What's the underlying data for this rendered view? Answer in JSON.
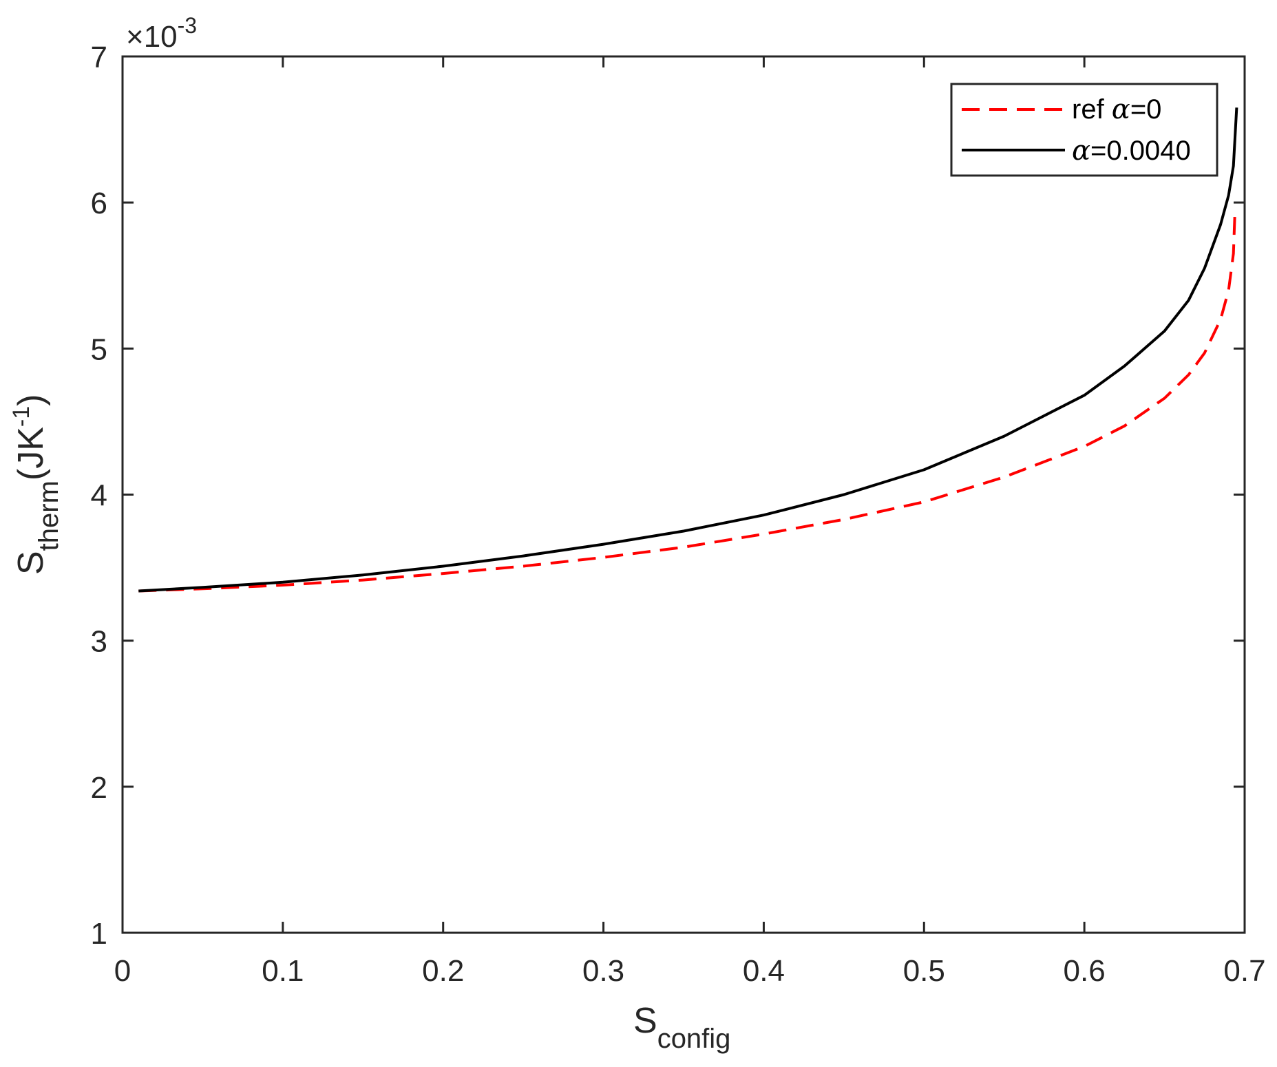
{
  "chart_data": {
    "type": "line",
    "title": "",
    "xlabel": "S_config",
    "xlabel_main": "S",
    "xlabel_sub": "config",
    "ylabel": "S_therm (JK^-1)",
    "ylabel_main": "S",
    "ylabel_sub": "therm",
    "ylabel_unit_open": "(JK",
    "ylabel_unit_sup": "-1",
    "ylabel_unit_close": ")",
    "y_multiplier": "×10",
    "y_multiplier_exp": "-3",
    "xlim": [
      0,
      0.7
    ],
    "ylim": [
      1,
      7
    ],
    "y_scale_factor": 0.001,
    "xticks": [
      0,
      0.1,
      0.2,
      0.3,
      0.4,
      0.5,
      0.6,
      0.7
    ],
    "xtick_labels": [
      "0",
      "0.1",
      "0.2",
      "0.3",
      "0.4",
      "0.5",
      "0.6",
      "0.7"
    ],
    "yticks": [
      1,
      2,
      3,
      4,
      5,
      6,
      7
    ],
    "ytick_labels": [
      "1",
      "2",
      "3",
      "4",
      "5",
      "6",
      "7"
    ],
    "grid": false,
    "legend_position": "upper right",
    "series": [
      {
        "name": "ref α=0",
        "legend_prefix": "ref ",
        "legend_greek": "α",
        "legend_suffix": "=0",
        "color": "#ff0000",
        "style": "dashed",
        "x": [
          0.01,
          0.05,
          0.1,
          0.15,
          0.2,
          0.25,
          0.3,
          0.35,
          0.4,
          0.45,
          0.5,
          0.55,
          0.6,
          0.625,
          0.65,
          0.665,
          0.675,
          0.685,
          0.69,
          0.693,
          0.694
        ],
        "y": [
          3.34,
          3.355,
          3.38,
          3.415,
          3.46,
          3.51,
          3.57,
          3.64,
          3.73,
          3.83,
          3.95,
          4.12,
          4.33,
          4.47,
          4.66,
          4.82,
          4.97,
          5.2,
          5.4,
          5.65,
          5.95
        ]
      },
      {
        "name": "α=0.0040",
        "legend_prefix": "",
        "legend_greek": "α",
        "legend_suffix": "=0.0040",
        "color": "#000000",
        "style": "solid",
        "x": [
          0.01,
          0.05,
          0.1,
          0.15,
          0.2,
          0.25,
          0.3,
          0.35,
          0.4,
          0.45,
          0.5,
          0.55,
          0.6,
          0.625,
          0.65,
          0.665,
          0.675,
          0.685,
          0.69,
          0.693,
          0.695
        ],
        "y": [
          3.34,
          3.365,
          3.4,
          3.45,
          3.51,
          3.58,
          3.66,
          3.75,
          3.86,
          4.0,
          4.17,
          4.4,
          4.68,
          4.88,
          5.12,
          5.33,
          5.55,
          5.85,
          6.05,
          6.25,
          6.65
        ]
      }
    ]
  },
  "colors": {
    "axis": "#262626",
    "background": "#ffffff"
  }
}
